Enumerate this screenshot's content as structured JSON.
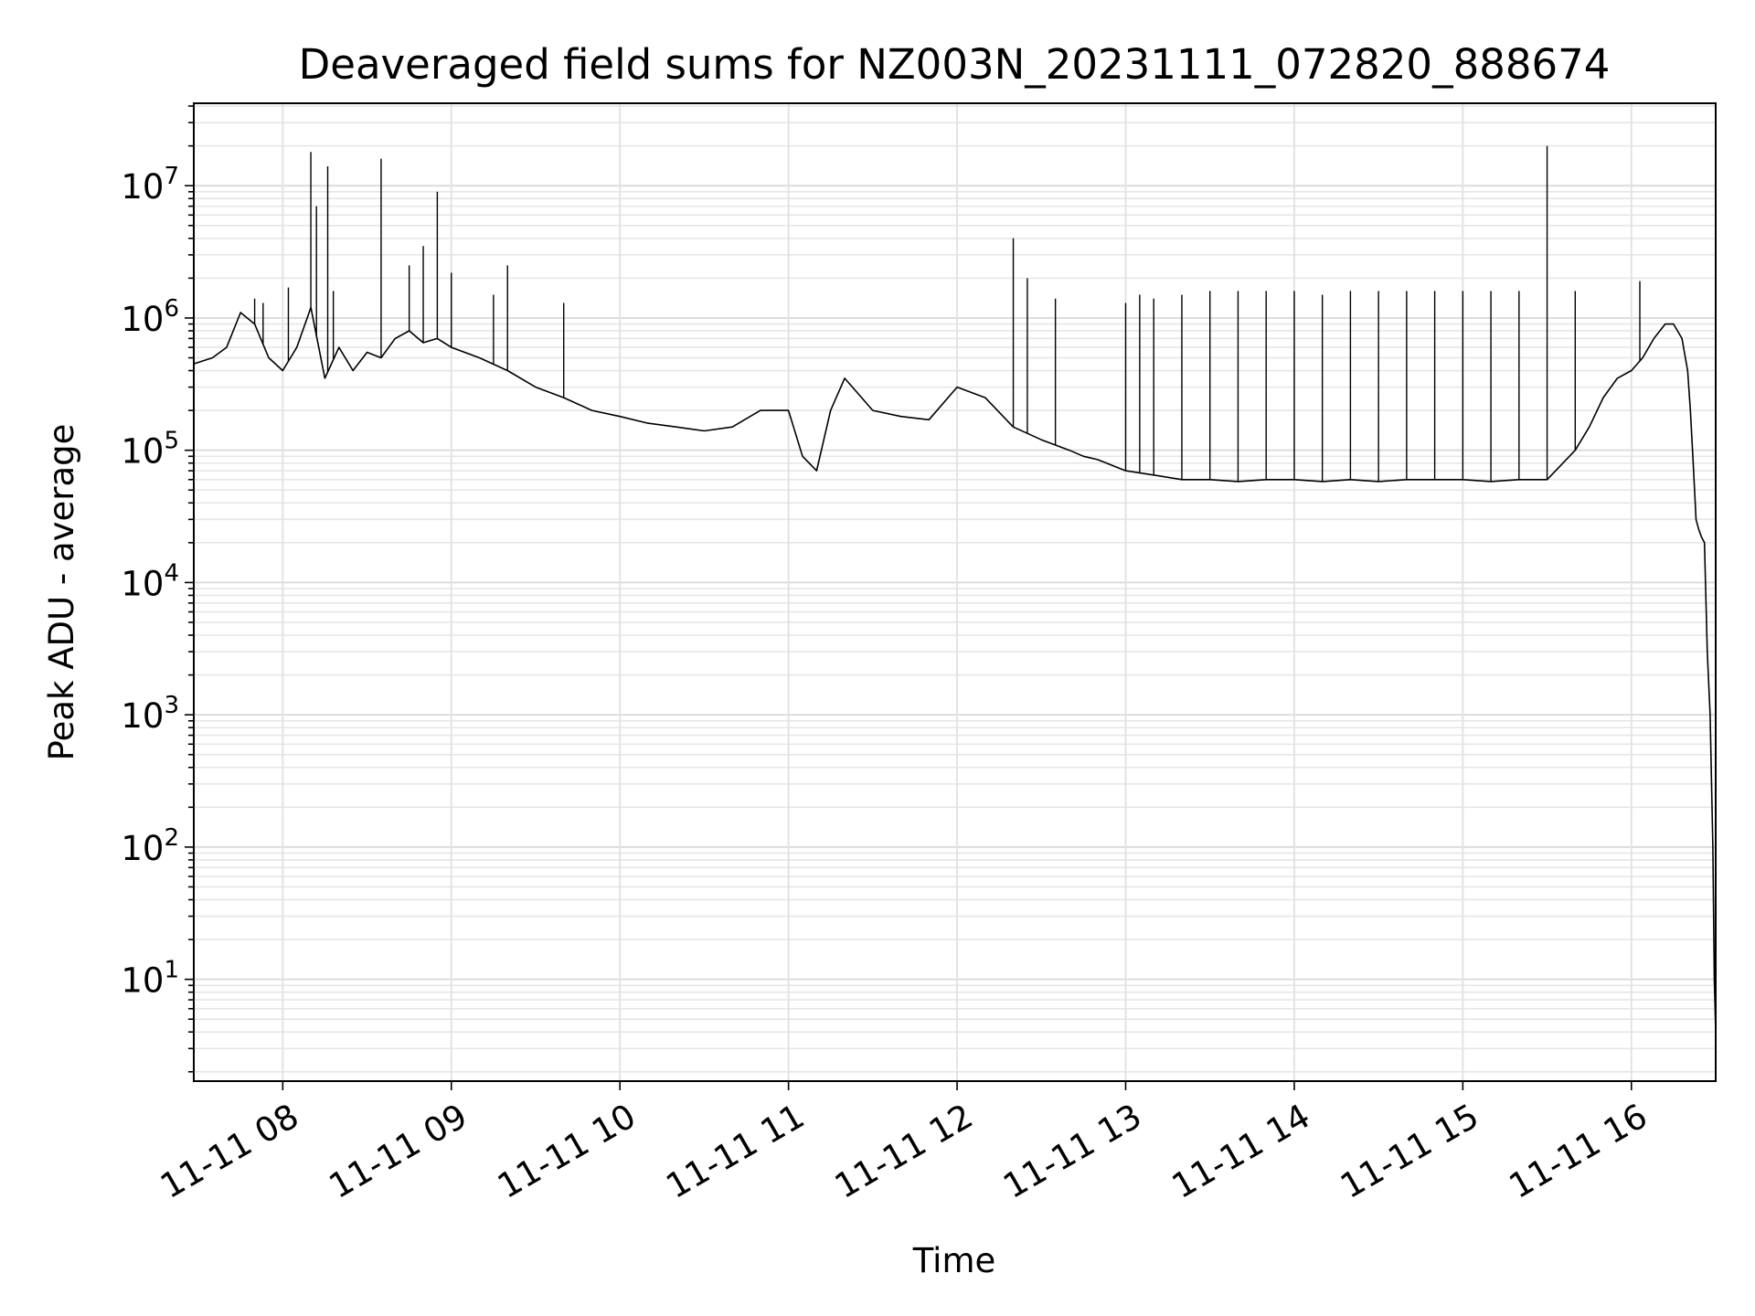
{
  "chart_data": {
    "type": "line",
    "title": "Deaveraged field sums for NZ003N_20231111_072820_888674",
    "xlabel": "Time",
    "ylabel": "Peak ADU - average",
    "y_scale": "log",
    "grid": true,
    "legend": "none",
    "x_range": [
      "2023-11-11 07:28:20",
      "2023-11-11 16:30:00"
    ],
    "ylim": [
      1.7,
      42000000
    ],
    "x_tick_labels": [
      "11-11 08",
      "11-11 09",
      "11-11 10",
      "11-11 11",
      "11-11 12",
      "11-11 13",
      "11-11 14",
      "11-11 15",
      "11-11 16"
    ],
    "y_tick_labels": [
      {
        "base": "10",
        "exp": "1"
      },
      {
        "base": "10",
        "exp": "2"
      },
      {
        "base": "10",
        "exp": "3"
      },
      {
        "base": "10",
        "exp": "4"
      },
      {
        "base": "10",
        "exp": "5"
      },
      {
        "base": "10",
        "exp": "6"
      },
      {
        "base": "10",
        "exp": "7"
      }
    ],
    "series": [
      {
        "color": "#000000",
        "x": [
          "2023-11-11 07:28:20",
          "2023-11-11 07:35:00",
          "2023-11-11 07:40:00",
          "2023-11-11 07:45:00",
          "2023-11-11 07:50:00",
          "2023-11-11 07:55:00",
          "2023-11-11 08:00:00",
          "2023-11-11 08:05:00",
          "2023-11-11 08:10:00",
          "2023-11-11 08:15:00",
          "2023-11-11 08:20:00",
          "2023-11-11 08:25:00",
          "2023-11-11 08:30:00",
          "2023-11-11 08:35:00",
          "2023-11-11 08:40:00",
          "2023-11-11 08:45:00",
          "2023-11-11 08:50:00",
          "2023-11-11 08:55:00",
          "2023-11-11 09:00:00",
          "2023-11-11 09:10:00",
          "2023-11-11 09:20:00",
          "2023-11-11 09:30:00",
          "2023-11-11 09:40:00",
          "2023-11-11 09:50:00",
          "2023-11-11 10:00:00",
          "2023-11-11 10:10:00",
          "2023-11-11 10:20:00",
          "2023-11-11 10:30:00",
          "2023-11-11 10:40:00",
          "2023-11-11 10:50:00",
          "2023-11-11 11:00:00",
          "2023-11-11 11:05:00",
          "2023-11-11 11:10:00",
          "2023-11-11 11:15:00",
          "2023-11-11 11:20:00",
          "2023-11-11 11:30:00",
          "2023-11-11 11:40:00",
          "2023-11-11 11:50:00",
          "2023-11-11 12:00:00",
          "2023-11-11 12:10:00",
          "2023-11-11 12:20:00",
          "2023-11-11 12:30:00",
          "2023-11-11 12:40:00",
          "2023-11-11 12:45:00",
          "2023-11-11 12:50:00",
          "2023-11-11 13:00:00",
          "2023-11-11 13:10:00",
          "2023-11-11 13:20:00",
          "2023-11-11 13:30:00",
          "2023-11-11 13:40:00",
          "2023-11-11 13:50:00",
          "2023-11-11 14:00:00",
          "2023-11-11 14:10:00",
          "2023-11-11 14:20:00",
          "2023-11-11 14:30:00",
          "2023-11-11 14:40:00",
          "2023-11-11 14:50:00",
          "2023-11-11 15:00:00",
          "2023-11-11 15:10:00",
          "2023-11-11 15:20:00",
          "2023-11-11 15:30:00",
          "2023-11-11 15:40:00",
          "2023-11-11 15:45:00",
          "2023-11-11 15:50:00",
          "2023-11-11 15:55:00",
          "2023-11-11 16:00:00",
          "2023-11-11 16:04:00",
          "2023-11-11 16:08:00",
          "2023-11-11 16:12:00",
          "2023-11-11 16:15:00",
          "2023-11-11 16:18:00",
          "2023-11-11 16:20:00",
          "2023-11-11 16:21:00",
          "2023-11-11 16:22:00",
          "2023-11-11 16:23:00",
          "2023-11-11 16:24:00",
          "2023-11-11 16:25:00",
          "2023-11-11 16:26:00",
          "2023-11-11 16:27:00",
          "2023-11-11 16:28:00",
          "2023-11-11 16:29:00",
          "2023-11-11 16:29:30",
          "2023-11-11 16:30:00"
        ],
        "y": [
          450000,
          500000,
          600000,
          1100000,
          900000,
          500000,
          400000,
          600000,
          1200000,
          350000,
          600000,
          400000,
          550000,
          500000,
          700000,
          800000,
          650000,
          700000,
          600000,
          500000,
          400000,
          300000,
          250000,
          200000,
          180000,
          160000,
          150000,
          140000,
          150000,
          200000,
          200000,
          90000,
          70000,
          200000,
          350000,
          200000,
          180000,
          170000,
          300000,
          250000,
          150000,
          120000,
          100000,
          90000,
          85000,
          70000,
          65000,
          60000,
          60000,
          58000,
          60000,
          60000,
          58000,
          60000,
          58000,
          60000,
          60000,
          60000,
          58000,
          60000,
          60000,
          100000,
          150000,
          250000,
          350000,
          400000,
          500000,
          700000,
          900000,
          900000,
          700000,
          400000,
          200000,
          80000,
          30000,
          25000,
          22000,
          20000,
          3000,
          1000,
          100,
          10,
          4
        ]
      }
    ],
    "spikes": {
      "x": [
        "2023-11-11 07:50:00",
        "2023-11-11 07:53:00",
        "2023-11-11 08:02:00",
        "2023-11-11 08:10:00",
        "2023-11-11 08:12:00",
        "2023-11-11 08:16:00",
        "2023-11-11 08:18:00",
        "2023-11-11 08:35:00",
        "2023-11-11 08:45:00",
        "2023-11-11 08:50:00",
        "2023-11-11 08:55:00",
        "2023-11-11 09:00:00",
        "2023-11-11 09:15:00",
        "2023-11-11 09:20:00",
        "2023-11-11 09:40:00",
        "2023-11-11 12:20:00",
        "2023-11-11 12:25:00",
        "2023-11-11 12:35:00",
        "2023-11-11 13:00:00",
        "2023-11-11 13:05:00",
        "2023-11-11 13:10:00",
        "2023-11-11 13:20:00",
        "2023-11-11 13:30:00",
        "2023-11-11 13:40:00",
        "2023-11-11 13:50:00",
        "2023-11-11 14:00:00",
        "2023-11-11 14:10:00",
        "2023-11-11 14:20:00",
        "2023-11-11 14:30:00",
        "2023-11-11 14:40:00",
        "2023-11-11 14:50:00",
        "2023-11-11 15:00:00",
        "2023-11-11 15:10:00",
        "2023-11-11 15:20:00",
        "2023-11-11 15:30:00",
        "2023-11-11 15:40:00",
        "2023-11-11 16:03:00"
      ],
      "y": [
        1400000,
        1300000,
        1700000,
        18000000,
        7000000,
        14000000,
        1600000,
        16000000,
        2500000,
        3500000,
        9000000,
        2200000,
        1500000,
        2500000,
        1300000,
        4000000,
        2000000,
        1400000,
        1300000,
        1500000,
        1400000,
        1500000,
        1600000,
        1600000,
        1600000,
        1600000,
        1500000,
        1600000,
        1600000,
        1600000,
        1600000,
        1600000,
        1600000,
        1600000,
        20000000,
        1600000,
        1900000
      ]
    }
  }
}
